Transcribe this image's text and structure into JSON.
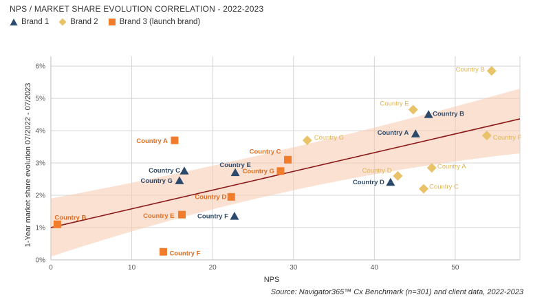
{
  "chart_data": {
    "type": "scatter",
    "title": "NPS / MARKET SHARE EVOLUTION CORRELATION - 2022-2023",
    "xlabel": "NPS",
    "ylabel": "1-Year market share evolution 07/2022 - 07/2023",
    "xlim": [
      0,
      58
    ],
    "ylim": [
      0,
      6.3
    ],
    "xticks": [
      0,
      10,
      20,
      30,
      40,
      50
    ],
    "yticks": [
      0,
      1,
      2,
      3,
      4,
      5,
      6
    ],
    "ytick_labels": [
      "0%",
      "1%",
      "2%",
      "3%",
      "4%",
      "5%",
      "6%"
    ],
    "grid": true,
    "source": "Source:  Navigator365™ Cx Benchmark (n=301) and client data, 2022-2023",
    "trendline": {
      "intercept": 1.0,
      "slope": 0.058,
      "band": [
        [
          0,
          0.1,
          1.9
        ],
        [
          58,
          3.3,
          5.3
        ]
      ]
    },
    "series": [
      {
        "name": "Brand 1",
        "marker": "triangle",
        "color": "#2c4a6b",
        "points": [
          {
            "label": "Country A",
            "x": 45.1,
            "y": 3.9
          },
          {
            "label": "Country B",
            "x": 46.7,
            "y": 4.5
          },
          {
            "label": "Country C",
            "x": 16.5,
            "y": 2.75
          },
          {
            "label": "Country D",
            "x": 42.0,
            "y": 2.4
          },
          {
            "label": "Country E",
            "x": 22.8,
            "y": 2.7
          },
          {
            "label": "Country F",
            "x": 22.7,
            "y": 1.35
          },
          {
            "label": "Country G",
            "x": 15.9,
            "y": 2.45
          }
        ]
      },
      {
        "name": "Brand 2",
        "marker": "diamond",
        "color": "#e8c36a",
        "points": [
          {
            "label": "Country A",
            "x": 47.1,
            "y": 2.85
          },
          {
            "label": "Country B",
            "x": 54.5,
            "y": 5.85
          },
          {
            "label": "Country C",
            "x": 46.1,
            "y": 2.2
          },
          {
            "label": "Country D",
            "x": 42.9,
            "y": 2.6
          },
          {
            "label": "Country E",
            "x": 44.8,
            "y": 4.65
          },
          {
            "label": "Country F",
            "x": 53.9,
            "y": 3.85
          },
          {
            "label": "Country G",
            "x": 31.7,
            "y": 3.7
          }
        ]
      },
      {
        "name": "Brand 3 (launch brand)",
        "marker": "square",
        "color": "#f07c2c",
        "points": [
          {
            "label": "Country A",
            "x": 15.3,
            "y": 3.7
          },
          {
            "label": "Country B",
            "x": 0.8,
            "y": 1.1
          },
          {
            "label": "Country C",
            "x": 29.3,
            "y": 3.1
          },
          {
            "label": "Country D",
            "x": 22.3,
            "y": 1.95
          },
          {
            "label": "Country E",
            "x": 16.2,
            "y": 1.4
          },
          {
            "label": "Country F",
            "x": 13.9,
            "y": 0.25
          },
          {
            "label": "Country G",
            "x": 28.4,
            "y": 2.75
          }
        ]
      }
    ]
  }
}
